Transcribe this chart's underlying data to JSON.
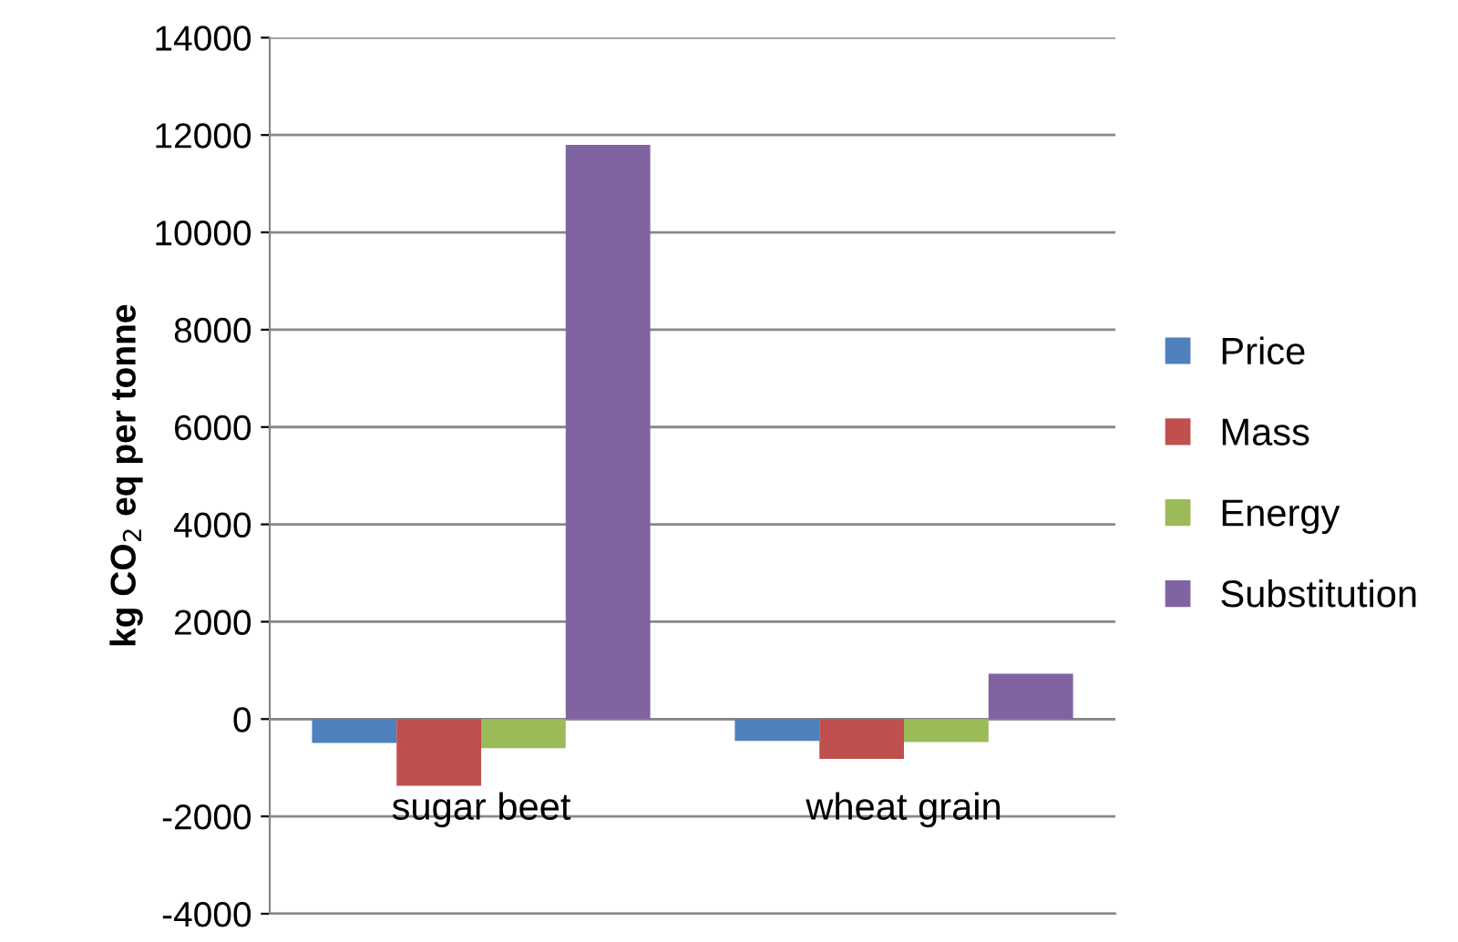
{
  "chart_data": {
    "type": "bar",
    "ylabel": "kg CO$_{2}$ eq per tonne",
    "categories": [
      "sugar beet",
      "wheat grain"
    ],
    "series": [
      {
        "name": "Price",
        "color": "#4f81bd",
        "values": [
          -490,
          -450
        ]
      },
      {
        "name": "Mass",
        "color": "#c0504d",
        "values": [
          -1370,
          -820
        ]
      },
      {
        "name": "Energy",
        "color": "#9bbb59",
        "values": [
          -600,
          -470
        ]
      },
      {
        "name": "Substitution",
        "color": "#8064a2",
        "values": [
          11800,
          930
        ]
      }
    ],
    "ylim": [
      -4000,
      14000
    ],
    "yticks": [
      -4000,
      -2000,
      0,
      2000,
      4000,
      6000,
      8000,
      10000,
      12000,
      14000
    ],
    "grid": "y",
    "legend": "right"
  }
}
